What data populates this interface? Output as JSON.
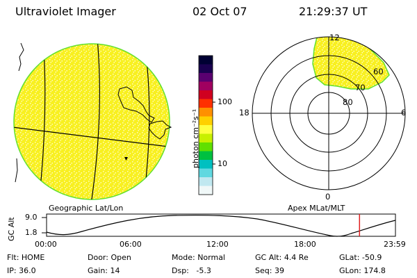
{
  "header": {
    "instrument": "Ultraviolet Imager",
    "date": "02 Oct 07",
    "time": "21:29:37 UT"
  },
  "panels": {
    "left_label": "Geographic Lat/Lon",
    "right_label": "Apex MLat/MLT"
  },
  "colorbar": {
    "unit_label": "photon cm⁻²s⁻¹",
    "tick_labels": [
      "100",
      "10"
    ],
    "colors": [
      "#000033",
      "#1a0050",
      "#5a0070",
      "#a00060",
      "#d00020",
      "#ff3000",
      "#ff9000",
      "#ffd000",
      "#ffff40",
      "#c8f000",
      "#60e000",
      "#00c040",
      "#00c0c0",
      "#60d8e0",
      "#c0e8f0",
      "#f0f8f8"
    ]
  },
  "polar_plot": {
    "mlt_labels": [
      "12",
      "18",
      "6",
      "0"
    ],
    "mlat_labels": [
      "60",
      "70",
      "80"
    ]
  },
  "altitude_panel": {
    "axis_title": "GC Alt",
    "y_ticks": [
      "9.0",
      "1.8"
    ],
    "x_ticks": [
      "00:00",
      "06:00",
      "12:00",
      "18:00",
      "23:59"
    ],
    "current_time_fraction": 0.897
  },
  "status": {
    "row1": [
      {
        "label": "Flt:",
        "value": "HOME"
      },
      {
        "label": "Door:",
        "value": "Open"
      },
      {
        "label": "Mode:",
        "value": "Normal"
      },
      {
        "label": "GC Alt:",
        "value": "4.4 Re"
      },
      {
        "label": "GLat:",
        "value": "-50.9"
      }
    ],
    "row2": [
      {
        "label": "IP:",
        "value": "36.0"
      },
      {
        "label": "Gain:",
        "value": "14"
      },
      {
        "label": "Dsp:",
        "value": "-5.3"
      },
      {
        "label": "Seq:",
        "value": "39"
      },
      {
        "label": "GLon:",
        "value": "174.8"
      }
    ]
  },
  "colors": {
    "emission": "#f8f020",
    "emission_dots": "#fffcc0",
    "limb": "#60e030",
    "marker": "#e02020"
  }
}
